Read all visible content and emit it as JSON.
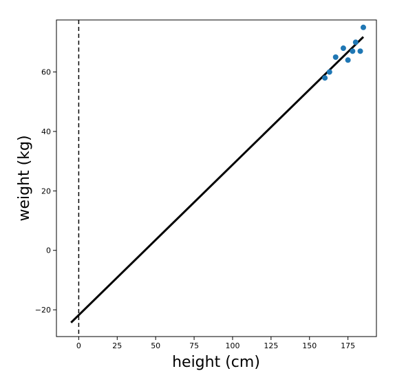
{
  "chart_data": {
    "type": "scatter",
    "title": "",
    "xlabel": "height (cm)",
    "ylabel": "weight (kg)",
    "xlim": [
      -14.5,
      193.5
    ],
    "ylim": [
      -29,
      77.5
    ],
    "x_ticks": [
      0,
      25,
      50,
      75,
      100,
      125,
      150,
      175
    ],
    "y_ticks": [
      -20,
      0,
      20,
      40,
      60
    ],
    "grid": false,
    "legend": "none",
    "points": {
      "color": "#1f77b4",
      "x": [
        160,
        163,
        167,
        172,
        175,
        178,
        180,
        183,
        185
      ],
      "y": [
        58,
        60,
        65,
        68,
        64,
        67,
        70,
        67,
        75
      ]
    },
    "fit_line": {
      "color": "#000000",
      "x": [
        -5,
        185
      ],
      "y": [
        -24.3,
        71.8
      ]
    },
    "vline": {
      "x": 0,
      "style": "dashed",
      "color": "#000000"
    }
  }
}
